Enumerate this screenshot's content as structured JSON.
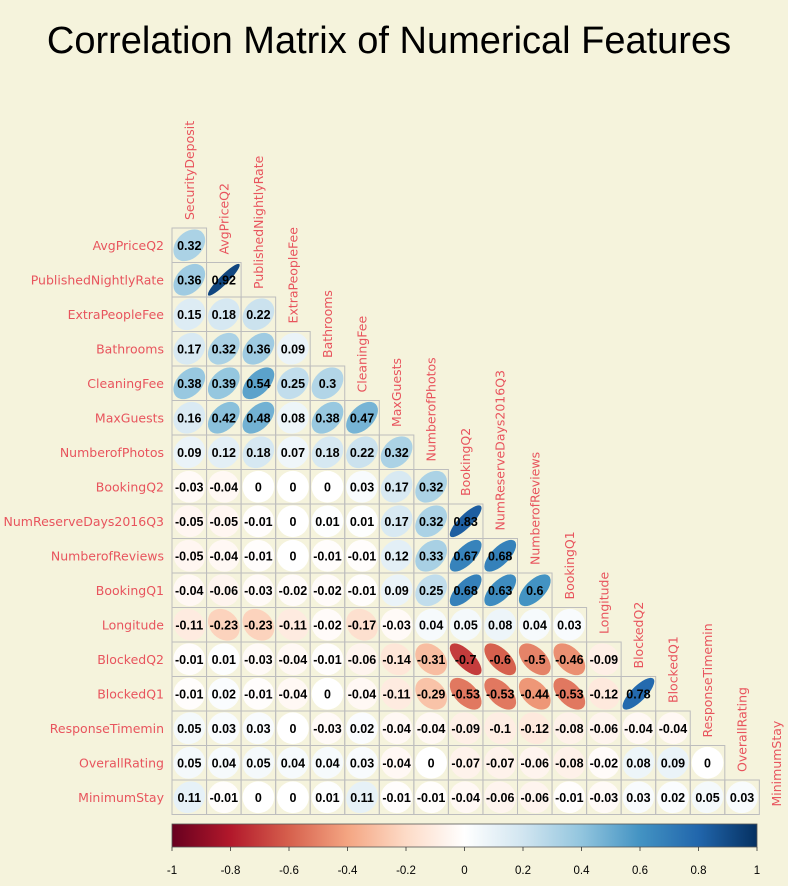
{
  "chart_data": {
    "type": "heatmap",
    "title": "Correlation Matrix of Numerical Features",
    "variables": [
      "SecurityDeposit",
      "AvgPriceQ2",
      "PublishedNightlyRate",
      "ExtraPeopleFee",
      "Bathrooms",
      "CleaningFee",
      "MaxGuests",
      "NumberofPhotos",
      "BookingQ2",
      "NumReserveDays2016Q3",
      "NumberofReviews",
      "BookingQ1",
      "Longitude",
      "BlockedQ2",
      "BlockedQ1",
      "ResponseTimemin",
      "OverallRating",
      "MinimumStay"
    ],
    "rows": [
      "AvgPriceQ2",
      "PublishedNightlyRate",
      "ExtraPeopleFee",
      "Bathrooms",
      "CleaningFee",
      "MaxGuests",
      "NumberofPhotos",
      "BookingQ2",
      "NumReserveDays2016Q3",
      "NumberofReviews",
      "BookingQ1",
      "Longitude",
      "BlockedQ2",
      "BlockedQ1",
      "ResponseTimemin",
      "OverallRating",
      "MinimumStay"
    ],
    "values": [
      [
        0.32
      ],
      [
        0.36,
        0.92
      ],
      [
        0.15,
        0.18,
        0.22
      ],
      [
        0.17,
        0.32,
        0.36,
        0.09
      ],
      [
        0.38,
        0.39,
        0.54,
        0.25,
        0.3
      ],
      [
        0.16,
        0.42,
        0.48,
        0.08,
        0.38,
        0.47
      ],
      [
        0.09,
        0.12,
        0.18,
        0.07,
        0.18,
        0.22,
        0.32
      ],
      [
        -0.03,
        -0.04,
        0,
        0,
        0,
        0.03,
        0.17,
        0.32
      ],
      [
        -0.05,
        -0.05,
        -0.01,
        0,
        0.01,
        0.01,
        0.17,
        0.32,
        0.83
      ],
      [
        -0.05,
        -0.04,
        -0.01,
        0,
        -0.01,
        -0.01,
        0.12,
        0.33,
        0.67,
        0.68
      ],
      [
        -0.04,
        -0.06,
        -0.03,
        -0.02,
        -0.02,
        -0.01,
        0.09,
        0.25,
        0.68,
        0.63,
        0.6
      ],
      [
        -0.11,
        -0.23,
        -0.23,
        -0.11,
        -0.02,
        -0.17,
        -0.03,
        0.04,
        0.05,
        0.08,
        0.04,
        0.03
      ],
      [
        -0.01,
        0.01,
        -0.03,
        -0.04,
        -0.01,
        -0.06,
        -0.14,
        -0.31,
        -0.7,
        -0.6,
        -0.5,
        -0.46,
        -0.09
      ],
      [
        -0.01,
        0.02,
        -0.01,
        -0.04,
        0,
        -0.04,
        -0.11,
        -0.29,
        -0.53,
        -0.53,
        -0.44,
        -0.53,
        -0.12,
        0.78
      ],
      [
        0.05,
        0.03,
        0.03,
        0,
        -0.03,
        0.02,
        -0.04,
        -0.04,
        -0.09,
        -0.1,
        -0.12,
        -0.08,
        -0.06,
        -0.04,
        -0.04
      ],
      [
        0.05,
        0.04,
        0.05,
        0.04,
        0.04,
        0.03,
        -0.04,
        0,
        -0.07,
        -0.07,
        -0.06,
        -0.08,
        -0.02,
        0.08,
        0.09,
        0
      ],
      [
        0.11,
        -0.01,
        0,
        0,
        0.01,
        0.11,
        -0.01,
        -0.01,
        -0.04,
        -0.06,
        -0.06,
        -0.01,
        -0.03,
        0.03,
        0.02,
        0.05,
        0.03
      ]
    ],
    "colorbar": {
      "ticks": [
        "-1",
        "-0.8",
        "-0.6",
        "-0.4",
        "-0.2",
        "0",
        "0.2",
        "0.4",
        "0.6",
        "0.8",
        "1"
      ],
      "range": [
        -1,
        1
      ],
      "colors": [
        "#67001f",
        "#b2182b",
        "#d6604d",
        "#f4a582",
        "#fddbc7",
        "#ffffff",
        "#d1e5f0",
        "#92c5de",
        "#4393c3",
        "#2166ac",
        "#053061"
      ]
    },
    "label_color": "#e8545d",
    "background": "#f5f3dc",
    "grid_color": "#bdbdbd"
  }
}
